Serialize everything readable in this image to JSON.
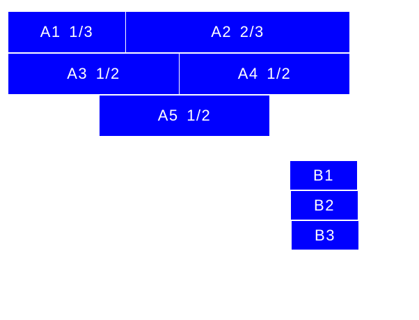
{
  "fill_color": "#0000ff",
  "text_color": "#ffffff",
  "group_a": [
    "A1 1/3",
    "A2 2/3",
    "A3 1/2",
    "A4 1/2",
    "A5 1/2"
  ],
  "group_b": [
    "B1",
    "B2",
    "B3"
  ]
}
